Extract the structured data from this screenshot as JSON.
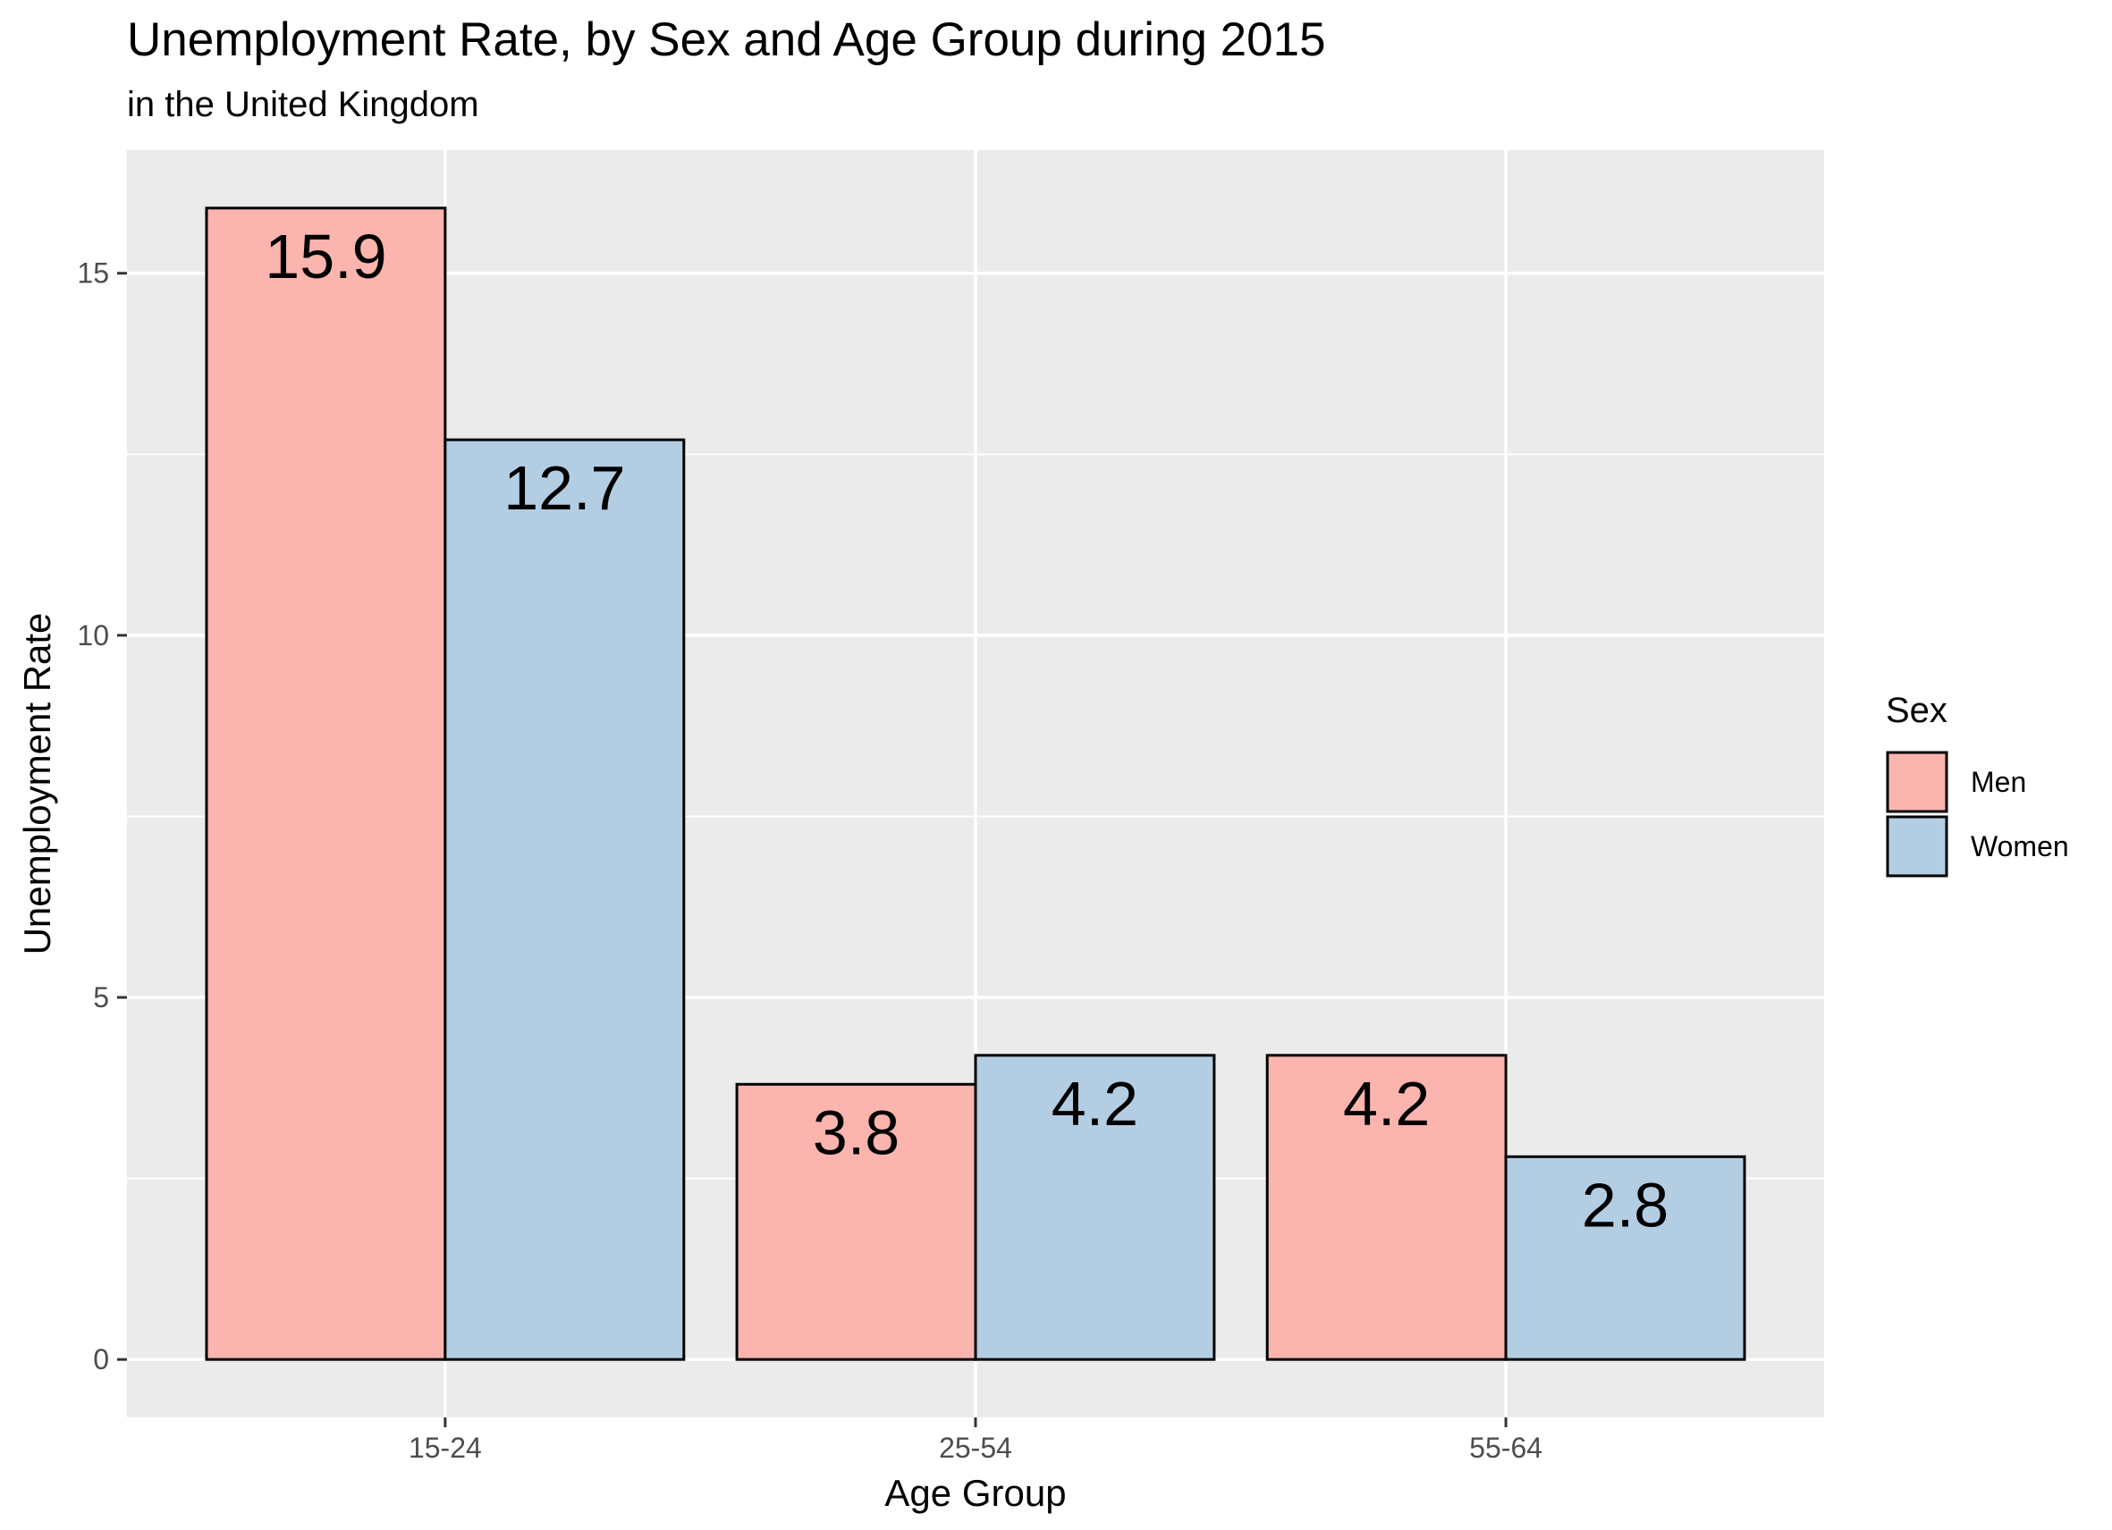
{
  "chart_data": {
    "type": "bar",
    "title": "Unemployment Rate, by Sex and Age Group during 2015",
    "subtitle": "in the United Kingdom",
    "xlabel": "Age Group",
    "ylabel": "Unemployment Rate",
    "categories": [
      "15-24",
      "25-54",
      "55-64"
    ],
    "series": [
      {
        "name": "Men",
        "color": "#fbb4ae",
        "values": [
          15.9,
          3.8,
          4.2
        ],
        "labels": [
          "15.9",
          "3.8",
          "4.2"
        ]
      },
      {
        "name": "Women",
        "color": "#b3cde3",
        "values": [
          12.7,
          4.2,
          2.8
        ],
        "labels": [
          "12.7",
          "4.2",
          "2.8"
        ]
      }
    ],
    "ylim": [
      -0.8,
      16.7
    ],
    "yticks": [
      0,
      5,
      10,
      15
    ],
    "ytick_labels": [
      "0",
      "5",
      "10",
      "15"
    ],
    "grid": true,
    "panel_color": "#ebebeb",
    "legend": {
      "title": "Sex",
      "position": "right"
    }
  }
}
